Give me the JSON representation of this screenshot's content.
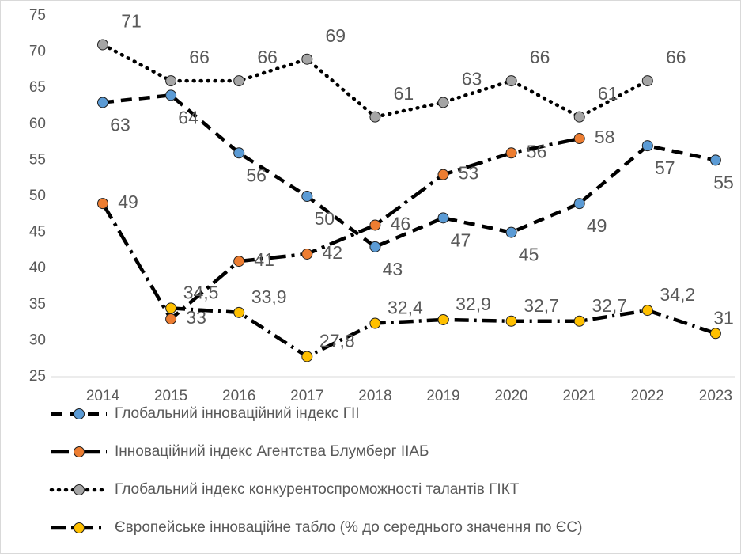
{
  "chart_data": {
    "type": "line",
    "categories": [
      "2014",
      "2015",
      "2016",
      "2017",
      "2018",
      "2019",
      "2020",
      "2021",
      "2022",
      "2023"
    ],
    "ylim": [
      25,
      75
    ],
    "yticks": [
      25,
      30,
      35,
      40,
      45,
      50,
      55,
      60,
      65,
      70,
      75
    ],
    "grid": false,
    "legend": "bottom",
    "series": [
      {
        "name": "Глобальний інноваційний індекс ГІІ",
        "color": "#5b9bd5",
        "dash": "14,9",
        "values": [
          63,
          64,
          56,
          50,
          43,
          47,
          45,
          49,
          57,
          55
        ]
      },
      {
        "name": "Інноваційний індекс Агентства Блумберг ІІАБ",
        "color": "#ed7d31",
        "dash": "22,7,4,7",
        "values": [
          49,
          33,
          41,
          42,
          46,
          53,
          56,
          58,
          null,
          null
        ]
      },
      {
        "name": "Глобальний індекс конкурентоспроможності талантів ГІКТ",
        "color": "#a5a5a5",
        "dash": "1,8",
        "values": [
          71,
          66,
          66,
          69,
          61,
          63,
          66,
          61,
          66,
          null
        ]
      },
      {
        "name": "Європейське інноваційне табло (% до середнього значення по ЄС)",
        "color": "#ffc000",
        "dash": "18,7,3,7",
        "values": [
          null,
          34.5,
          33.9,
          27.8,
          32.4,
          32.9,
          32.7,
          32.7,
          34.2,
          31
        ],
        "value_labels": [
          null,
          "34,5",
          "33,9",
          "27,8",
          "32,4",
          "32,9",
          "32,7",
          "32,7",
          "34,2",
          "31"
        ]
      }
    ]
  }
}
